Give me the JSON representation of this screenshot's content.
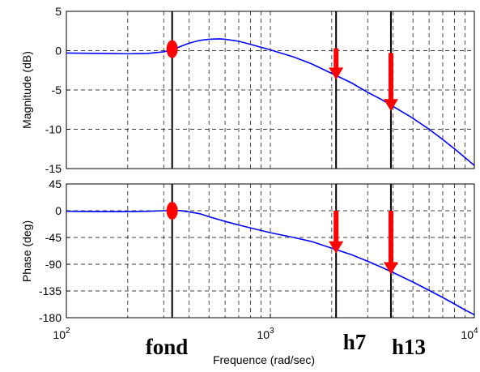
{
  "chart_data": [
    {
      "type": "line",
      "panel": "magnitude",
      "ylabel": "Magnitude (dB)",
      "xscale": "log",
      "xlim": [
        100,
        10000
      ],
      "ylim": [
        -15,
        5
      ],
      "yticks": [
        "5",
        "0",
        "-5",
        "-10",
        "-15"
      ],
      "grid": true,
      "series": [
        {
          "color": "#0000ff",
          "x": [
            100,
            150,
            200,
            250,
            300,
            330,
            360,
            400,
            450,
            500,
            560,
            600,
            700,
            800,
            1000,
            1300,
            1600,
            2000,
            2500,
            3000,
            3500,
            4000,
            5000,
            6000,
            7000,
            8000,
            9000,
            10000
          ],
          "y": [
            -0.3,
            -0.35,
            -0.4,
            -0.35,
            -0.15,
            0.1,
            0.5,
            0.95,
            1.3,
            1.45,
            1.5,
            1.45,
            1.2,
            0.8,
            0.1,
            -0.8,
            -1.7,
            -2.9,
            -4.1,
            -5.3,
            -6.2,
            -7.1,
            -8.6,
            -10.0,
            -11.3,
            -12.5,
            -13.6,
            -14.6
          ]
        }
      ],
      "markers": [
        {
          "x": 330,
          "y": 0.2,
          "shape": "ellipse",
          "color": "#ff0000"
        }
      ],
      "arrows": [
        {
          "x": 2100,
          "y_from": 0.3,
          "y_to": -3.7,
          "color": "#ff0000"
        },
        {
          "x": 3900,
          "y_from": -0.3,
          "y_to": -7.7,
          "color": "#ff0000"
        }
      ]
    },
    {
      "type": "line",
      "panel": "phase",
      "ylabel": "Phase (deg)",
      "xlabel": "Frequence  (rad/sec)",
      "xscale": "log",
      "xlim": [
        100,
        10000
      ],
      "ylim": [
        -180,
        45
      ],
      "yticks": [
        "45",
        "0",
        "-45",
        "-90",
        "-135",
        "-180"
      ],
      "xticks": [
        {
          "base": "10",
          "exp": "2"
        },
        {
          "base": "10",
          "exp": "3"
        },
        {
          "base": "10",
          "exp": "4"
        }
      ],
      "grid": true,
      "series": [
        {
          "color": "#0000ff",
          "x": [
            100,
            150,
            200,
            250,
            300,
            330,
            360,
            400,
            450,
            500,
            600,
            700,
            800,
            1000,
            1300,
            1600,
            2000,
            2500,
            3000,
            3500,
            4000,
            5000,
            6000,
            7000,
            8000,
            9000,
            10000
          ],
          "y": [
            -1,
            -1.5,
            -1.5,
            -1,
            0,
            0.5,
            0.3,
            -2,
            -5,
            -10,
            -18,
            -24,
            -29,
            -37,
            -45,
            -52,
            -63,
            -74,
            -85,
            -95,
            -104,
            -120,
            -134,
            -146,
            -157,
            -167,
            -175
          ]
        }
      ],
      "markers": [
        {
          "x": 330,
          "y": 0,
          "shape": "ellipse",
          "color": "#ff0000"
        }
      ],
      "arrows": [
        {
          "x": 2100,
          "y_from": 0,
          "y_to": -72,
          "color": "#ff0000"
        },
        {
          "x": 3900,
          "y_from": 0,
          "y_to": -107,
          "color": "#ff0000"
        }
      ]
    }
  ],
  "vertical_lines": [
    {
      "x": 330,
      "label": "fond"
    },
    {
      "x": 2100,
      "label": "h7"
    },
    {
      "x": 3900,
      "label": "h13"
    }
  ]
}
